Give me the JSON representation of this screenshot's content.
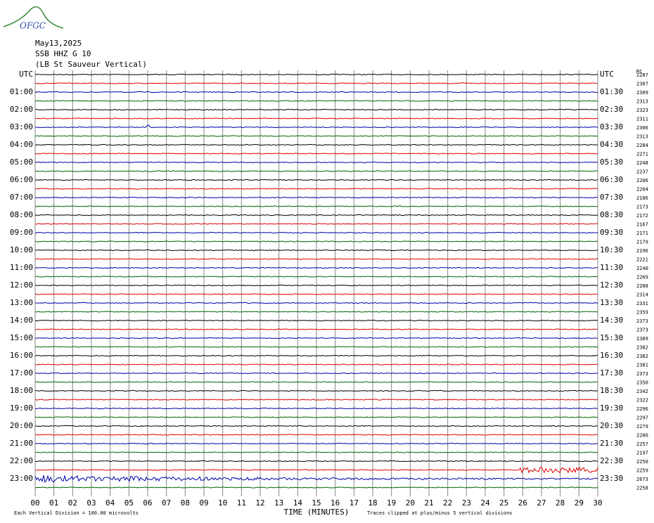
{
  "logo": "OFGC",
  "header": {
    "date": "May13,2025",
    "station": "SSB HHZ G 10",
    "description": "(LB St Sauveur Vertical)"
  },
  "left_labels": [
    "UTC",
    "01:00",
    "02:00",
    "03:00",
    "04:00",
    "05:00",
    "06:00",
    "07:00",
    "08:00",
    "09:00",
    "10:00",
    "11:00",
    "12:00",
    "13:00",
    "14:00",
    "15:00",
    "16:00",
    "17:00",
    "18:00",
    "19:00",
    "20:00",
    "21:00",
    "22:00",
    "23:00"
  ],
  "right_labels": [
    "UTC",
    "01:30",
    "02:30",
    "03:30",
    "04:30",
    "05:30",
    "06:30",
    "07:30",
    "08:30",
    "09:30",
    "10:30",
    "11:30",
    "12:30",
    "13:30",
    "14:30",
    "15:30",
    "16:30",
    "17:30",
    "18:30",
    "19:30",
    "20:30",
    "21:30",
    "22:30",
    "23:30"
  ],
  "rms_header": "RC",
  "rms": [
    "2287",
    "2307",
    "2309",
    "2313",
    "2323",
    "2311",
    "2306",
    "2313",
    "2284",
    "2271",
    "2248",
    "2237",
    "2206",
    "2204",
    "2186",
    "2173",
    "2172",
    "2167",
    "2171",
    "2179",
    "2196",
    "2221",
    "2240",
    "2269",
    "2288",
    "2314",
    "2331",
    "2359",
    "2373",
    "2373",
    "2389",
    "2382",
    "2382",
    "2381",
    "2373",
    "2350",
    "2342",
    "2322",
    "2296",
    "2297",
    "2279",
    "2280",
    "2257",
    "2197",
    "2250",
    "2259",
    "2673",
    "2258"
  ],
  "x_labels": [
    "00",
    "01",
    "02",
    "03",
    "04",
    "05",
    "06",
    "07",
    "08",
    "09",
    "10",
    "11",
    "12",
    "13",
    "14",
    "15",
    "16",
    "17",
    "18",
    "19",
    "20",
    "21",
    "22",
    "23",
    "24",
    "25",
    "26",
    "27",
    "28",
    "29",
    "30"
  ],
  "x_axis_title": "TIME (MINUTES)",
  "footer_left": "Each Vertical Division =  100.00 microvolts",
  "footer_right": "Traces clipped at plus/minus 5 vertical divisions"
}
